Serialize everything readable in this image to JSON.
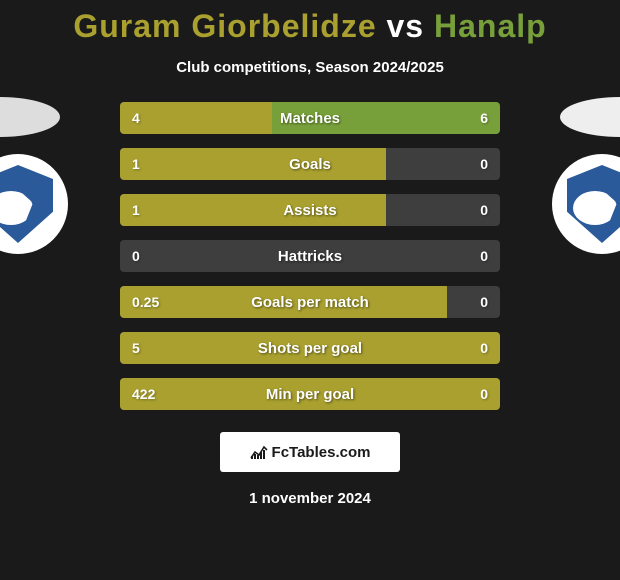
{
  "title": {
    "player1": "Guram Giorbelidze",
    "vs": "vs",
    "player2": "Hanalp",
    "color1": "#a9a02f",
    "color_vs": "#ffffff",
    "color2": "#78a03a"
  },
  "subtitle": "Club competitions, Season 2024/2025",
  "colors": {
    "left_bar": "#a9a02f",
    "right_bar": "#78a03a",
    "track": "#3e3e3e",
    "background": "#1a1a1a"
  },
  "stats": [
    {
      "label": "Matches",
      "left_val": "4",
      "right_val": "6",
      "left_pct": 40,
      "right_pct": 60
    },
    {
      "label": "Goals",
      "left_val": "1",
      "right_val": "0",
      "left_pct": 70,
      "right_pct": 0
    },
    {
      "label": "Assists",
      "left_val": "1",
      "right_val": "0",
      "left_pct": 70,
      "right_pct": 0
    },
    {
      "label": "Hattricks",
      "left_val": "0",
      "right_val": "0",
      "left_pct": 0,
      "right_pct": 0
    },
    {
      "label": "Goals per match",
      "left_val": "0.25",
      "right_val": "0",
      "left_pct": 86,
      "right_pct": 0
    },
    {
      "label": "Shots per goal",
      "left_val": "5",
      "right_val": "0",
      "left_pct": 100,
      "right_pct": 0
    },
    {
      "label": "Min per goal",
      "left_val": "422",
      "right_val": "0",
      "left_pct": 100,
      "right_pct": 0
    }
  ],
  "footer": {
    "brand": "FcTables.com",
    "date": "1 november 2024"
  }
}
